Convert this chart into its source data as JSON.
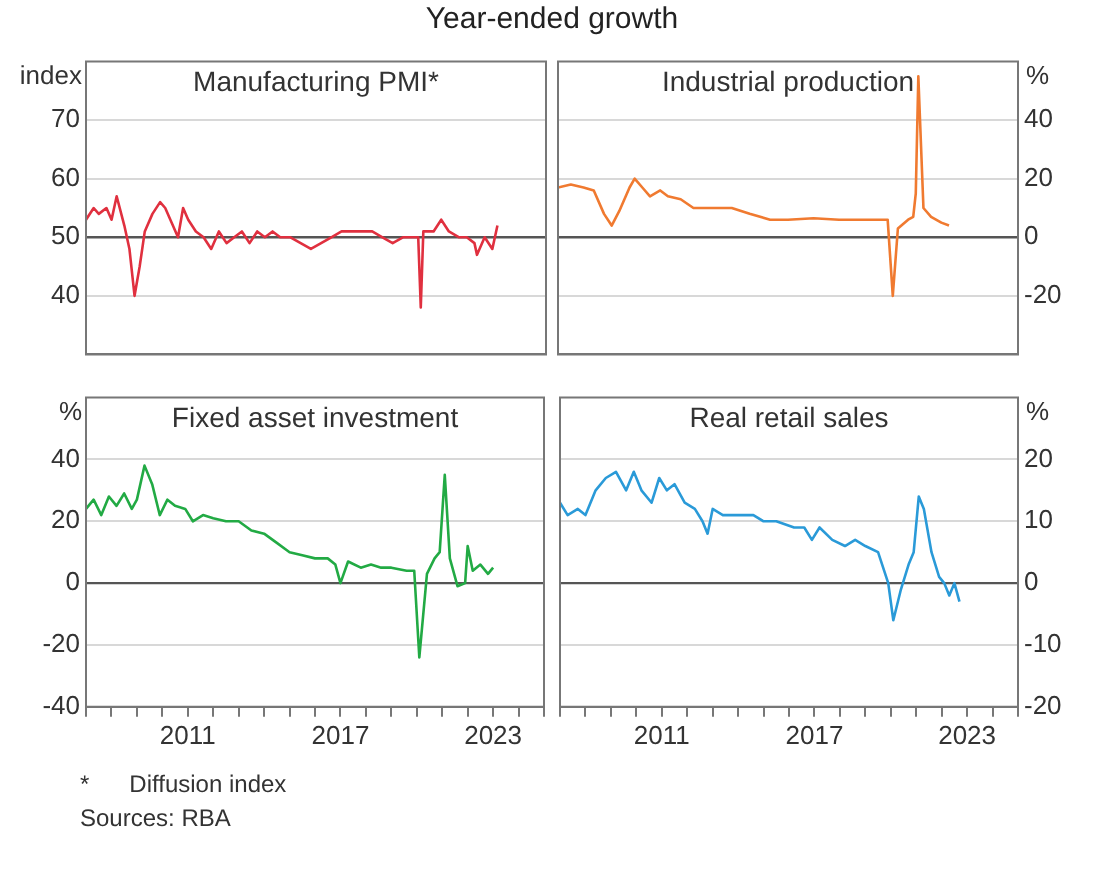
{
  "chart_data": [
    {
      "type": "line",
      "title": "Manufacturing PMI*",
      "subtitle": "Year-ended growth",
      "ylabel": "index",
      "xlim": [
        2007,
        2025
      ],
      "ylim": [
        30,
        80
      ],
      "yticks": [
        40,
        50,
        60,
        70
      ],
      "tick_labels": "y",
      "grid": "y",
      "ref_lines": [
        {
          "axis": "y",
          "value": 50,
          "color": "#555555"
        }
      ],
      "series": [
        {
          "color": "#e0303f",
          "x": [
            2007.0,
            2007.3,
            2007.5,
            2007.8,
            2008.0,
            2008.2,
            2008.5,
            2008.7,
            2008.9,
            2009.1,
            2009.3,
            2009.6,
            2009.9,
            2010.1,
            2010.4,
            2010.6,
            2010.8,
            2011.0,
            2011.3,
            2011.6,
            2011.9,
            2012.2,
            2012.5,
            2012.8,
            2013.1,
            2013.4,
            2013.7,
            2014.0,
            2014.3,
            2014.6,
            2015.0,
            2015.4,
            2015.8,
            2016.2,
            2016.6,
            2017.0,
            2017.4,
            2017.8,
            2018.2,
            2018.6,
            2019.0,
            2019.4,
            2019.8,
            2020.0,
            2020.1,
            2020.2,
            2020.6,
            2020.9,
            2021.2,
            2021.6,
            2021.9,
            2022.2,
            2022.3,
            2022.6,
            2022.9,
            2023.1
          ],
          "values": [
            53,
            55,
            54,
            55,
            53,
            57,
            52,
            48,
            40,
            45,
            51,
            54,
            56,
            55,
            52,
            50,
            55,
            53,
            51,
            50,
            48,
            51,
            49,
            50,
            51,
            49,
            51,
            50,
            51,
            50,
            50,
            49,
            48,
            49,
            50,
            51,
            51,
            51,
            51,
            50,
            49,
            50,
            50,
            50,
            38,
            51,
            51,
            53,
            51,
            50,
            50,
            49,
            47,
            50,
            48,
            52
          ]
        }
      ]
    },
    {
      "type": "line",
      "title": "Industrial production",
      "y2label": "%",
      "xlim": [
        2007,
        2025
      ],
      "y2lim": [
        -40,
        60
      ],
      "y2ticks": [
        -20,
        0,
        20,
        40
      ],
      "tick_labels": "y",
      "grid": "y",
      "ref_lines": [
        {
          "axis": "y2",
          "value": 0,
          "color": "#555555"
        }
      ],
      "series": [
        {
          "color": "#f07a30",
          "axis": "y2",
          "x": [
            2007.0,
            2007.5,
            2008.0,
            2008.4,
            2008.8,
            2009.1,
            2009.4,
            2009.8,
            2010.0,
            2010.3,
            2010.6,
            2011.0,
            2011.3,
            2011.8,
            2012.3,
            2013.0,
            2013.8,
            2014.5,
            2015.3,
            2016.0,
            2017.0,
            2018.0,
            2019.0,
            2019.9,
            2020.1,
            2020.3,
            2020.7,
            2020.9,
            2021.0,
            2021.1,
            2021.3,
            2021.6,
            2022.0,
            2022.3
          ],
          "values": [
            17,
            18,
            17,
            16,
            8,
            4,
            9,
            17,
            20,
            17,
            14,
            16,
            14,
            13,
            10,
            10,
            10,
            8,
            6,
            6,
            6.5,
            6,
            6,
            6,
            -20,
            3,
            6,
            7,
            15,
            55,
            10,
            7,
            5,
            4
          ]
        }
      ]
    },
    {
      "type": "line",
      "title": "Fixed asset investment",
      "ylabel": "%",
      "xlim": [
        2007,
        2025
      ],
      "xticks": [
        {
          "value": 2007,
          "label": null
        },
        {
          "value": 2008,
          "label": null
        },
        {
          "value": 2009,
          "label": null
        },
        {
          "value": 2010,
          "label": null
        },
        2011,
        {
          "value": 2012,
          "label": null
        },
        {
          "value": 2013,
          "label": null
        },
        {
          "value": 2014,
          "label": null
        },
        {
          "value": 2015,
          "label": null
        },
        {
          "value": 2016,
          "label": null
        },
        2017,
        {
          "value": 2018,
          "label": null
        },
        {
          "value": 2019,
          "label": null
        },
        {
          "value": 2020,
          "label": null
        },
        {
          "value": 2021,
          "label": null
        },
        {
          "value": 2022,
          "label": null
        },
        2023,
        {
          "value": 2024,
          "label": null
        },
        {
          "value": 2025,
          "label": null
        }
      ],
      "ylim": [
        -40,
        60
      ],
      "yticks": [
        -40,
        -20,
        0,
        20,
        40
      ],
      "grid": "y",
      "ref_lines": [
        {
          "axis": "y",
          "value": 0,
          "color": "#555555"
        }
      ],
      "series": [
        {
          "color": "#22aa44",
          "x": [
            2007.0,
            2007.3,
            2007.6,
            2007.9,
            2008.2,
            2008.5,
            2008.8,
            2009.0,
            2009.3,
            2009.6,
            2009.9,
            2010.2,
            2010.5,
            2010.9,
            2011.2,
            2011.6,
            2012.0,
            2012.5,
            2013.0,
            2013.5,
            2014.0,
            2014.5,
            2015.0,
            2015.5,
            2016.0,
            2016.5,
            2016.8,
            2017.0,
            2017.3,
            2017.8,
            2018.2,
            2018.6,
            2019.0,
            2019.6,
            2019.9,
            2020.1,
            2020.4,
            2020.7,
            2020.9,
            2021.1,
            2021.3,
            2021.6,
            2021.9,
            2022.0,
            2022.2,
            2022.5,
            2022.8,
            2023.0
          ],
          "values": [
            24,
            27,
            22,
            28,
            25,
            29,
            24,
            27,
            38,
            32,
            22,
            27,
            25,
            24,
            20,
            22,
            21,
            20,
            20,
            17,
            16,
            13,
            10,
            9,
            8,
            8,
            6,
            0,
            7,
            5,
            6,
            5,
            5,
            4,
            4,
            -24,
            3,
            8,
            10,
            35,
            8,
            -1,
            0,
            12,
            4,
            6,
            3,
            5
          ]
        }
      ]
    },
    {
      "type": "line",
      "title": "Real retail sales",
      "y2label": "%",
      "xlim": [
        2007,
        2025
      ],
      "xticks": [
        {
          "value": 2007,
          "label": null
        },
        {
          "value": 2008,
          "label": null
        },
        {
          "value": 2009,
          "label": null
        },
        {
          "value": 2010,
          "label": null
        },
        2011,
        {
          "value": 2012,
          "label": null
        },
        {
          "value": 2013,
          "label": null
        },
        {
          "value": 2014,
          "label": null
        },
        {
          "value": 2015,
          "label": null
        },
        {
          "value": 2016,
          "label": null
        },
        2017,
        {
          "value": 2018,
          "label": null
        },
        {
          "value": 2019,
          "label": null
        },
        {
          "value": 2020,
          "label": null
        },
        {
          "value": 2021,
          "label": null
        },
        {
          "value": 2022,
          "label": null
        },
        2023,
        {
          "value": 2024,
          "label": null
        },
        {
          "value": 2025,
          "label": null
        }
      ],
      "y2lim": [
        -20,
        30
      ],
      "y2ticks": [
        -20,
        -10,
        0,
        10,
        20
      ],
      "grid": "y",
      "ref_lines": [
        {
          "axis": "y2",
          "value": 0,
          "color": "#555555"
        }
      ],
      "annotations": [
        "*      Diffusion index",
        "Sources: RBA"
      ],
      "series": [
        {
          "color": "#2a9ad8",
          "axis": "y2",
          "x": [
            2007.0,
            2007.3,
            2007.7,
            2008.0,
            2008.4,
            2008.8,
            2009.2,
            2009.6,
            2009.9,
            2010.2,
            2010.6,
            2010.9,
            2011.2,
            2011.5,
            2011.9,
            2012.3,
            2012.6,
            2012.8,
            2013.0,
            2013.4,
            2014.0,
            2014.6,
            2015.0,
            2015.5,
            2016.2,
            2016.6,
            2016.9,
            2017.2,
            2017.7,
            2018.2,
            2018.6,
            2019.0,
            2019.5,
            2019.9,
            2020.1,
            2020.4,
            2020.7,
            2020.9,
            2021.1,
            2021.3,
            2021.6,
            2021.9,
            2022.1,
            2022.3,
            2022.5,
            2022.7
          ],
          "values": [
            13,
            11,
            12,
            11,
            15,
            17,
            18,
            15,
            18,
            15,
            13,
            17,
            15,
            16,
            13,
            12,
            10,
            8,
            12,
            11,
            11,
            11,
            10,
            10,
            9,
            9,
            7,
            9,
            7,
            6,
            7,
            6,
            5,
            0,
            -6,
            -1,
            3,
            5,
            14,
            12,
            5,
            1,
            0,
            -2,
            0,
            -3
          ]
        }
      ]
    }
  ]
}
